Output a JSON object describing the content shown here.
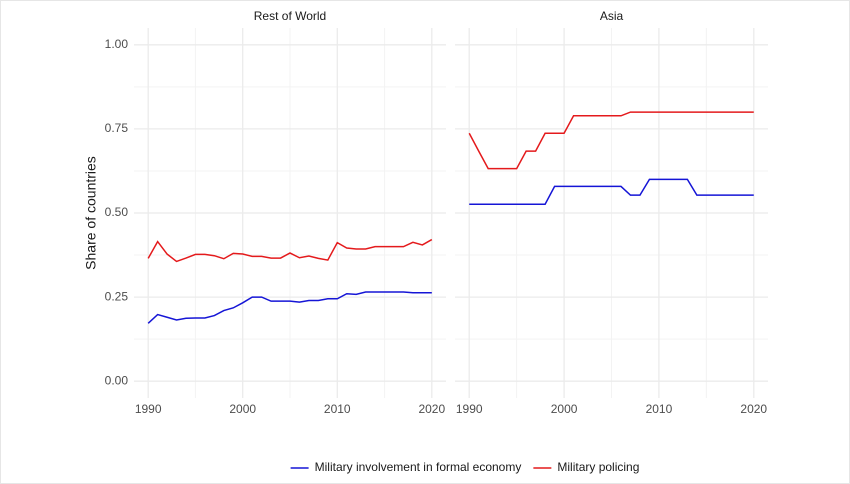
{
  "chart_data": [
    {
      "type": "line",
      "title": "Rest of World",
      "ylabel": "Share of countries",
      "x": [
        1990,
        1991,
        1992,
        1993,
        1994,
        1995,
        1996,
        1997,
        1998,
        1999,
        2000,
        2001,
        2002,
        2003,
        2004,
        2005,
        2006,
        2007,
        2008,
        2009,
        2010,
        2011,
        2012,
        2013,
        2014,
        2015,
        2016,
        2017,
        2018,
        2019,
        2020
      ],
      "series": [
        {
          "name": "Military involvement in formal economy",
          "color": "#1515d6",
          "values": [
            0.172,
            0.198,
            0.19,
            0.182,
            0.187,
            0.188,
            0.188,
            0.195,
            0.21,
            0.218,
            0.233,
            0.25,
            0.25,
            0.238,
            0.238,
            0.238,
            0.235,
            0.24,
            0.24,
            0.245,
            0.245,
            0.26,
            0.258,
            0.265,
            0.265,
            0.265,
            0.265,
            0.265,
            0.263,
            0.263,
            0.263
          ]
        },
        {
          "name": "Military policing",
          "color": "#e41a1c",
          "values": [
            0.365,
            0.415,
            0.378,
            0.356,
            0.366,
            0.377,
            0.377,
            0.373,
            0.364,
            0.38,
            0.378,
            0.371,
            0.371,
            0.366,
            0.366,
            0.381,
            0.367,
            0.372,
            0.365,
            0.36,
            0.412,
            0.396,
            0.393,
            0.393,
            0.4,
            0.4,
            0.4,
            0.4,
            0.413,
            0.405,
            0.421
          ]
        }
      ],
      "xlim": [
        1988.5,
        2021.5
      ],
      "xticks": [
        1990,
        2000,
        2010,
        2020
      ],
      "ylim": [
        -0.05,
        1.05
      ],
      "yticks": [
        {
          "value": 0,
          "label": "0.00"
        },
        {
          "value": 0.25,
          "label": "0.25"
        },
        {
          "value": 0.5,
          "label": "0.50"
        },
        {
          "value": 0.75,
          "label": "0.75"
        },
        {
          "value": 1,
          "label": "1.00"
        }
      ],
      "grid": true,
      "legend": "bottom"
    },
    {
      "type": "line",
      "title": "Asia",
      "x": [
        1990,
        1991,
        1992,
        1993,
        1994,
        1995,
        1996,
        1997,
        1998,
        1999,
        2000,
        2001,
        2002,
        2003,
        2004,
        2005,
        2006,
        2007,
        2008,
        2009,
        2010,
        2011,
        2012,
        2013,
        2014,
        2015,
        2016,
        2017,
        2018,
        2019,
        2020
      ],
      "series": [
        {
          "color": "#1515d6",
          "values": [
            0.526,
            0.526,
            0.526,
            0.526,
            0.526,
            0.526,
            0.526,
            0.526,
            0.526,
            0.579,
            0.579,
            0.579,
            0.579,
            0.579,
            0.579,
            0.579,
            0.579,
            0.553,
            0.553,
            0.6,
            0.6,
            0.6,
            0.6,
            0.6,
            0.553,
            0.553,
            0.553,
            0.553,
            0.553,
            0.553,
            0.553
          ]
        },
        {
          "color": "#e41a1c",
          "values": [
            0.737,
            0.684,
            0.632,
            0.632,
            0.632,
            0.632,
            0.684,
            0.684,
            0.737,
            0.737,
            0.737,
            0.789,
            0.789,
            0.789,
            0.789,
            0.789,
            0.789,
            0.8,
            0.8,
            0.8,
            0.8,
            0.8,
            0.8,
            0.8,
            0.8,
            0.8,
            0.8,
            0.8,
            0.8,
            0.8,
            0.8
          ]
        }
      ],
      "xlim": [
        1988.5,
        2021.5
      ],
      "xticks": [
        1990,
        2000,
        2010,
        2020
      ],
      "ylim": [
        -0.05,
        1.05
      ],
      "grid": true
    }
  ]
}
